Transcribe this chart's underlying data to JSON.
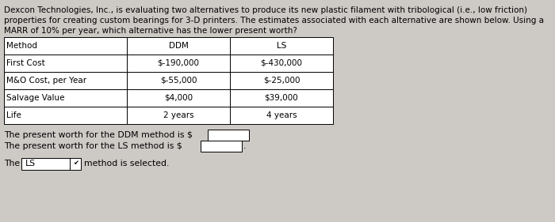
{
  "background_color": "#cdc9c5",
  "title_text_lines": [
    "Dexcon Technologies, Inc., is evaluating two alternatives to produce its new plastic filament with tribological (i.e., low friction)",
    "properties for creating custom bearings for 3-D printers. The estimates associated with each alternative are shown below. Using a",
    "MARR of 10% per year, which alternative has the lower present worth?"
  ],
  "table_headers": [
    "Method",
    "DDM",
    "LS"
  ],
  "table_rows": [
    [
      "First Cost",
      "$-190,000",
      "$-430,000"
    ],
    [
      "M&O Cost, per Year",
      "$-55,000",
      "$-25,000"
    ],
    [
      "Salvage Value",
      "$4,000",
      "$39,000"
    ],
    [
      "Life",
      "2 years",
      "4 years"
    ]
  ],
  "pw_ddm_label": "The present worth for the DDM method is $",
  "pw_ls_label": "The present worth for the LS method is $",
  "selected_label_pre": "The",
  "selected_method": "LS",
  "selected_label_post": "method is selected.",
  "font_size_title": 7.5,
  "font_size_table": 7.5,
  "font_size_body": 7.8
}
